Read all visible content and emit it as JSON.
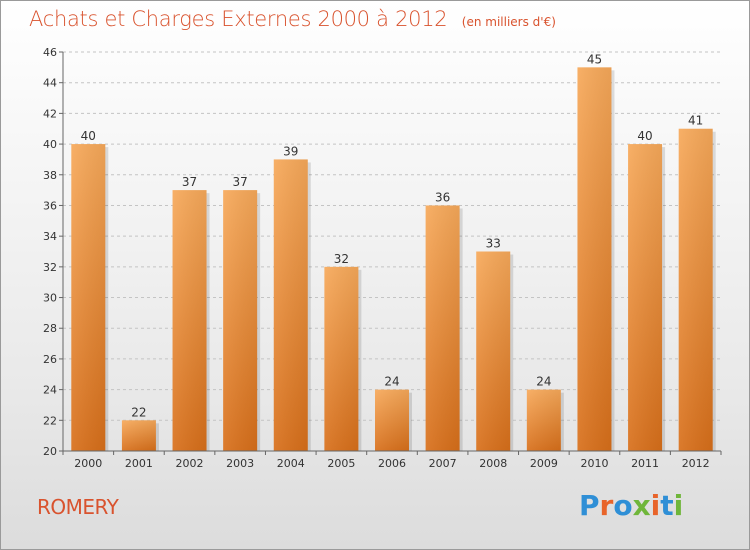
{
  "header": {
    "title": "Achats et Charges Externes 2000 à 2012",
    "subtitle": "(en milliers d'€)"
  },
  "footer": {
    "commune": "ROMERY",
    "logo_text": "Proxiti",
    "logo_colors": [
      "#2f8fd6",
      "#e8642a",
      "#2f8fd6",
      "#6fb63a",
      "#e8642a",
      "#2f8fd6",
      "#6fb63a"
    ]
  },
  "colors": {
    "accent": "#d9532e",
    "bar_top": "#f7a95a",
    "bar_bottom": "#d86f1a"
  },
  "chart_data": {
    "type": "bar",
    "title": "Achats et Charges Externes 2000 à 2012",
    "subtitle": "(en milliers d'€)",
    "categories": [
      "2000",
      "2001",
      "2002",
      "2003",
      "2004",
      "2005",
      "2006",
      "2007",
      "2008",
      "2009",
      "2010",
      "2011",
      "2012"
    ],
    "values": [
      40,
      22,
      37,
      37,
      39,
      32,
      24,
      36,
      33,
      24,
      45,
      40,
      41
    ],
    "ylim": [
      20,
      46
    ],
    "yticks": [
      20,
      22,
      24,
      26,
      28,
      30,
      32,
      34,
      36,
      38,
      40,
      42,
      44,
      46
    ],
    "grid": true,
    "data_labels": true,
    "xlabel": "",
    "ylabel": ""
  }
}
